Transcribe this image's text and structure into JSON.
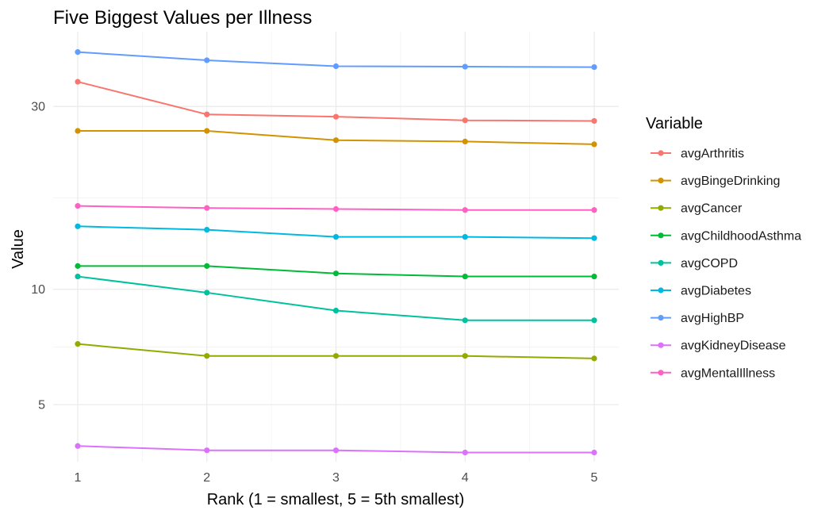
{
  "chart_data": {
    "type": "line",
    "title": "Five Biggest Values per Illness",
    "xlabel": "Rank (1 = smallest, 5 = 5th smallest)",
    "ylabel": "Value",
    "x": [
      1,
      2,
      3,
      4,
      5
    ],
    "x_ticks": [
      "1",
      "2",
      "3",
      "4",
      "5"
    ],
    "y_scale": "log",
    "y_ticks": [
      5,
      10,
      30
    ],
    "y_tick_labels": [
      "5",
      "10",
      "30"
    ],
    "ylim": [
      3.55,
      47.0
    ],
    "grid": true,
    "legend_title": "Variable",
    "legend_position": "right",
    "series": [
      {
        "name": "avgArthritis",
        "color": "#F8766D",
        "values": [
          34.8,
          28.6,
          28.2,
          27.6,
          27.5
        ]
      },
      {
        "name": "avgBingeDrinking",
        "color": "#D39200",
        "values": [
          25.9,
          25.9,
          24.5,
          24.3,
          23.9
        ]
      },
      {
        "name": "avgCancer",
        "color": "#93AA00",
        "values": [
          7.2,
          6.7,
          6.7,
          6.7,
          6.6
        ]
      },
      {
        "name": "avgChildhoodAsthma",
        "color": "#00BA38",
        "values": [
          11.5,
          11.5,
          11.0,
          10.8,
          10.8
        ]
      },
      {
        "name": "avgCOPD",
        "color": "#00C19F",
        "values": [
          10.8,
          9.8,
          8.8,
          8.3,
          8.3
        ]
      },
      {
        "name": "avgDiabetes",
        "color": "#00B9E3",
        "values": [
          14.6,
          14.3,
          13.7,
          13.7,
          13.6
        ]
      },
      {
        "name": "avgHighBP",
        "color": "#619CFF",
        "values": [
          41.6,
          39.6,
          38.2,
          38.1,
          38.0
        ]
      },
      {
        "name": "avgKidneyDisease",
        "color": "#DB72FB",
        "values": [
          3.9,
          3.8,
          3.8,
          3.75,
          3.75
        ]
      },
      {
        "name": "avgMentalIllness",
        "color": "#FF61C3",
        "values": [
          16.5,
          16.3,
          16.2,
          16.1,
          16.1
        ]
      }
    ]
  }
}
